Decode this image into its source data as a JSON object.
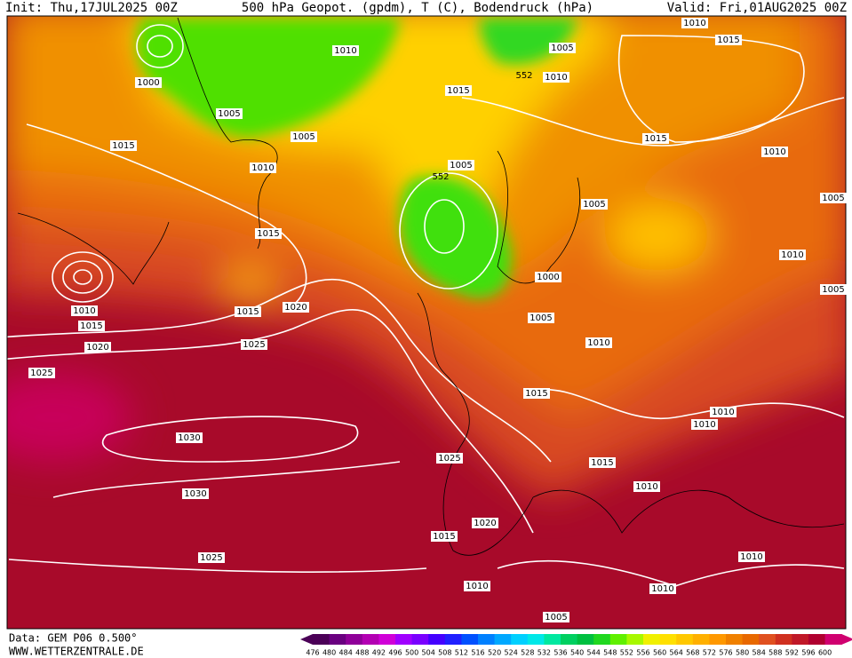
{
  "header": {
    "init": "Init: Thu,17JUL2025 00Z",
    "title": "500 hPa Geopot. (gpdm), T (C), Bodendruck (hPa)",
    "valid": "Valid: Fri,01AUG2025 00Z"
  },
  "footer": {
    "source": "Data: GEM P06 0.500°",
    "website": "WWW.WETTERZENTRALE.DE"
  },
  "isobar_labels": [
    "1010",
    "1015",
    "1005",
    "1010",
    "552",
    "1010",
    "1000",
    "1005",
    "1005",
    "1015",
    "1015",
    "1015",
    "1010",
    "1010",
    "1005",
    "552",
    "1005",
    "1005",
    "1015",
    "1010",
    "1000",
    "1005",
    "1010",
    "1015",
    "1020",
    "1005",
    "1015",
    "1020",
    "1025",
    "1010",
    "1025",
    "1015",
    "1010",
    "1010",
    "1030",
    "1025",
    "1015",
    "1010",
    "1030",
    "1020",
    "1015",
    "1025",
    "1010",
    "1010",
    "1010",
    "1005"
  ],
  "legend": {
    "ticks": [
      476,
      480,
      484,
      488,
      492,
      496,
      500,
      504,
      508,
      512,
      516,
      520,
      524,
      528,
      532,
      536,
      540,
      544,
      548,
      552,
      556,
      560,
      564,
      568,
      572,
      576,
      580,
      584,
      588,
      592,
      596,
      600
    ],
    "colors": [
      "#4b0057",
      "#6a0080",
      "#8f0099",
      "#b300b3",
      "#d000d8",
      "#a000ff",
      "#7a00ff",
      "#4400ff",
      "#2020ff",
      "#0050ff",
      "#0080ff",
      "#00a8ff",
      "#00d0ff",
      "#00e8e8",
      "#00e8a0",
      "#00d060",
      "#00c040",
      "#20d820",
      "#60f000",
      "#a8f800",
      "#f0f000",
      "#ffe000",
      "#ffc800",
      "#ffb000",
      "#ff9800",
      "#f08000",
      "#e86800",
      "#e05020",
      "#d03020",
      "#c01828",
      "#b00030",
      "#d00070"
    ]
  }
}
